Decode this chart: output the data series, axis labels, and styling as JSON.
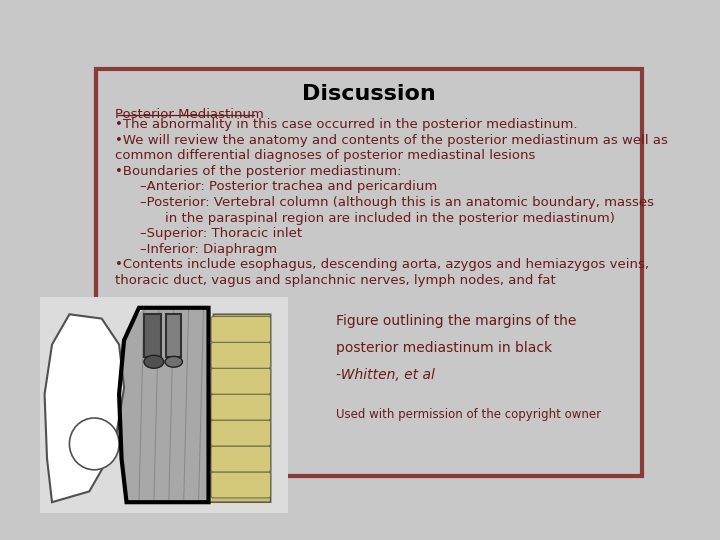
{
  "title": "Discussion",
  "title_fontsize": 16,
  "title_color": "#000000",
  "bg_color": "#c8c8c8",
  "border_color": "#8b3a3a",
  "text_color": "#6b1a1a",
  "heading": "Posterior Mediastinum",
  "lines": [
    {
      "text": "•The abnormality in this case occurred in the posterior mediastinum.",
      "indent": 0
    },
    {
      "text": "•We will review the anatomy and contents of the posterior mediastinum as well as",
      "indent": 0
    },
    {
      "text": "common differential diagnoses of posterior mediastinal lesions",
      "indent": 0
    },
    {
      "text": "•Boundaries of the posterior mediastinum:",
      "indent": 0
    },
    {
      "text": "–Anterior: Posterior trachea and pericardium",
      "indent": 1
    },
    {
      "text": "–Posterior: Vertebral column (although this is an anatomic boundary, masses",
      "indent": 1
    },
    {
      "text": "in the paraspinal region are included in the posterior mediastinum)",
      "indent": 2
    },
    {
      "text": "–Superior: Thoracic inlet",
      "indent": 1
    },
    {
      "text": "–Inferior: Diaphragm",
      "indent": 1
    },
    {
      "text": "•Contents include esophagus, descending aorta, azygos and hemiazygos veins,",
      "indent": 0
    },
    {
      "text": "thoracic duct, vagus and splanchnic nerves, lymph nodes, and fat",
      "indent": 0
    }
  ],
  "caption_lines": [
    {
      "text": "Figure outlining the margins of the",
      "italic": false
    },
    {
      "text": "posterior mediastinum in black",
      "italic": false
    },
    {
      "text": "-Whitten, et al",
      "italic": true
    }
  ],
  "permission_text": "Used with permission of the copyright owner",
  "main_fontsize": 9.5,
  "caption_fontsize": 10,
  "permission_fontsize": 8.5
}
